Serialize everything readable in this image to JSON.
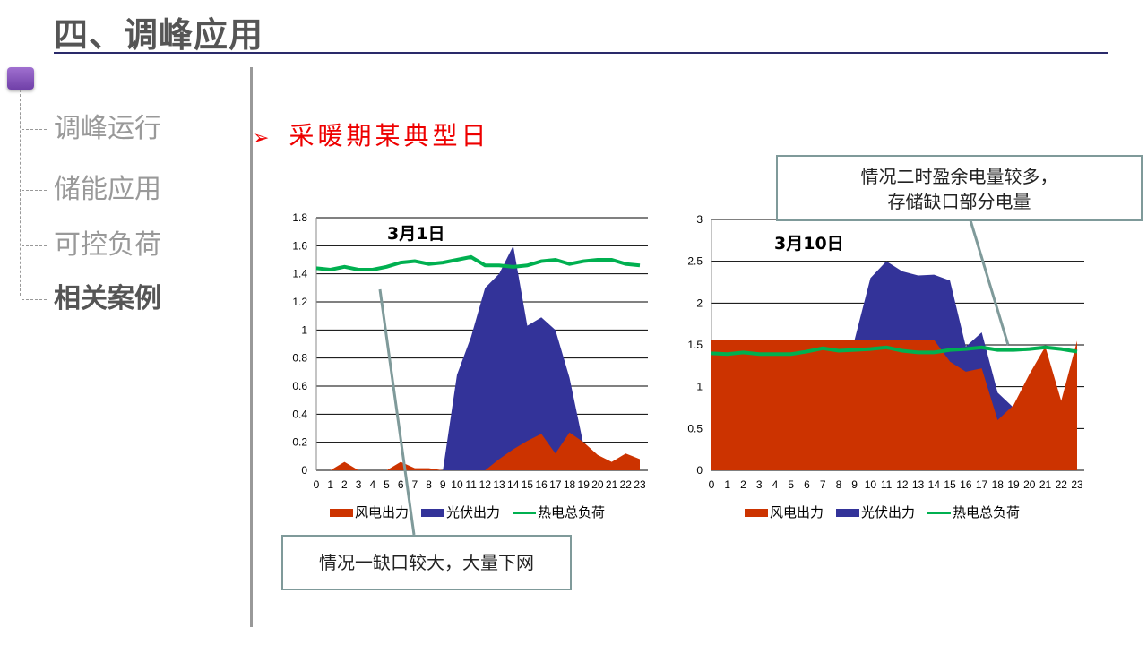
{
  "header": {
    "title": "四、调峰应用"
  },
  "sidebar": {
    "items": [
      {
        "label": "调峰运行",
        "active": false
      },
      {
        "label": "储能应用",
        "active": false
      },
      {
        "label": "可控负荷",
        "active": false
      },
      {
        "label": "相关案例",
        "active": true
      }
    ]
  },
  "main": {
    "subheading": "采暖期某典型日",
    "bullet_icon": "arrow-right",
    "callout1": "情况一缺口较大，大量下网",
    "callout2_line1": "情况二时盈余电量较多，",
    "callout2_line2": "存储缺口部分电量"
  },
  "colors": {
    "wind": "#cc3300",
    "pv": "#333399",
    "load": "#00b050"
  },
  "chart_data": [
    {
      "type": "area",
      "title": "3月1日",
      "x": [
        0,
        1,
        2,
        3,
        4,
        5,
        6,
        7,
        8,
        9,
        10,
        11,
        12,
        13,
        14,
        15,
        16,
        17,
        18,
        19,
        20,
        21,
        22,
        23
      ],
      "x_ticks": [
        "0",
        "1",
        "2",
        "3",
        "4",
        "5",
        "6",
        "7",
        "8",
        "9",
        "10",
        "11",
        "12",
        "13",
        "14",
        "15",
        "16",
        "17",
        "18",
        "19",
        "20",
        "21",
        "22",
        "23"
      ],
      "ylim": [
        0,
        1.8
      ],
      "y_ticks": [
        "0",
        "0.2",
        "0.4",
        "0.6",
        "0.8",
        "1",
        "1.2",
        "1.4",
        "1.6",
        "1.8"
      ],
      "y_tick_values": [
        0,
        0.2,
        0.4,
        0.6,
        0.8,
        1,
        1.2,
        1.4,
        1.6,
        1.8
      ],
      "grid": true,
      "legend_position": "bottom",
      "series": [
        {
          "name": "风电出力",
          "type": "area",
          "values": [
            0,
            0,
            0.06,
            0,
            0,
            0,
            0.06,
            0.015,
            0.015,
            0,
            0,
            0,
            0,
            0.08,
            0.15,
            0.21,
            0.26,
            0.12,
            0.27,
            0.2,
            0.11,
            0.06,
            0.12,
            0.08
          ]
        },
        {
          "name": "光伏出力",
          "type": "area",
          "values": [
            0,
            0,
            0,
            0,
            0,
            0,
            0,
            0,
            0,
            0,
            0.68,
            0.95,
            1.3,
            1.4,
            1.6,
            1.03,
            1.09,
            1.0,
            0.66,
            0.18,
            0,
            0,
            0,
            0
          ]
        },
        {
          "name": "热电总负荷",
          "type": "line",
          "values": [
            1.44,
            1.43,
            1.45,
            1.43,
            1.43,
            1.45,
            1.48,
            1.49,
            1.47,
            1.48,
            1.5,
            1.52,
            1.46,
            1.46,
            1.45,
            1.46,
            1.49,
            1.5,
            1.47,
            1.49,
            1.5,
            1.5,
            1.47,
            1.46
          ]
        }
      ]
    },
    {
      "type": "area",
      "title": "3月10日",
      "x": [
        0,
        1,
        2,
        3,
        4,
        5,
        6,
        7,
        8,
        9,
        10,
        11,
        12,
        13,
        14,
        15,
        16,
        17,
        18,
        19,
        20,
        21,
        22,
        23
      ],
      "x_ticks": [
        "0",
        "1",
        "2",
        "3",
        "4",
        "5",
        "6",
        "7",
        "8",
        "9",
        "10",
        "11",
        "12",
        "13",
        "14",
        "15",
        "16",
        "17",
        "18",
        "19",
        "20",
        "21",
        "22",
        "23"
      ],
      "ylim": [
        0,
        3
      ],
      "y_ticks": [
        "0",
        "0.5",
        "1",
        "1.5",
        "2",
        "2.5",
        "3"
      ],
      "y_tick_values": [
        0,
        0.5,
        1,
        1.5,
        2,
        2.5,
        3
      ],
      "grid": true,
      "legend_position": "bottom",
      "series": [
        {
          "name": "风电出力",
          "type": "area",
          "values": [
            1.56,
            1.56,
            1.56,
            1.56,
            1.56,
            1.56,
            1.56,
            1.56,
            1.56,
            1.56,
            1.56,
            1.56,
            1.56,
            1.56,
            1.56,
            1.3,
            1.18,
            1.22,
            0.6,
            0.78,
            1.15,
            1.48,
            0.83,
            1.55
          ]
        },
        {
          "name": "光伏出力",
          "type": "area",
          "values": [
            0,
            0,
            0,
            0,
            0,
            0,
            0,
            0,
            0,
            1.56,
            2.3,
            2.5,
            2.38,
            2.33,
            2.34,
            2.27,
            1.48,
            1.65,
            0.93,
            0.75,
            0,
            0,
            0,
            0
          ]
        },
        {
          "name": "热电总负荷",
          "type": "line",
          "values": [
            1.4,
            1.39,
            1.41,
            1.39,
            1.39,
            1.39,
            1.42,
            1.46,
            1.43,
            1.44,
            1.45,
            1.47,
            1.43,
            1.41,
            1.41,
            1.44,
            1.45,
            1.47,
            1.44,
            1.44,
            1.45,
            1.47,
            1.45,
            1.42
          ]
        }
      ]
    }
  ]
}
